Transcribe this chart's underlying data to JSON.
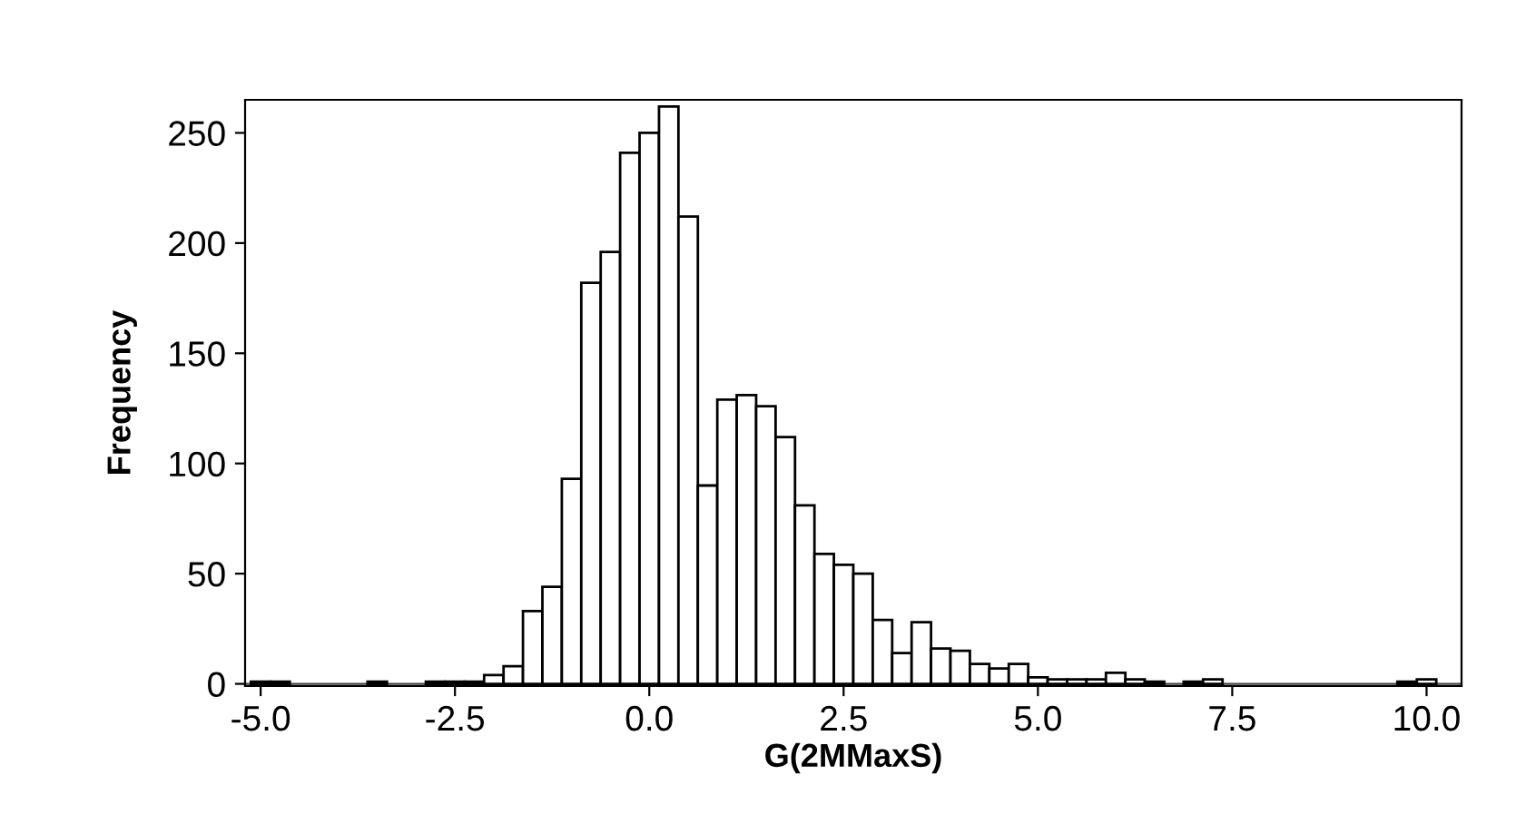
{
  "chart_data": {
    "type": "histogram",
    "xlabel": "G(2MMaxS)",
    "ylabel": "Frequency",
    "bins": [
      -5.125,
      -4.875,
      -4.625,
      -4.375,
      -4.125,
      -3.875,
      -3.625,
      -3.375,
      -3.125,
      -2.875,
      -2.625,
      -2.375,
      -2.125,
      -1.875,
      -1.625,
      -1.375,
      -1.125,
      -0.875,
      -0.625,
      -0.375,
      -0.125,
      0.125,
      0.375,
      0.625,
      0.875,
      1.125,
      1.375,
      1.625,
      1.875,
      2.125,
      2.375,
      2.625,
      2.875,
      3.125,
      3.375,
      3.625,
      3.875,
      4.125,
      4.375,
      4.625,
      4.875,
      5.125,
      5.375,
      5.625,
      5.875,
      6.125,
      6.375,
      6.625,
      6.875,
      7.125,
      7.375,
      7.625,
      7.875,
      8.125,
      8.375,
      8.625,
      8.875,
      9.125,
      9.375,
      9.625,
      9.875,
      10.125
    ],
    "values": [
      1,
      1,
      0,
      0,
      0,
      0,
      1,
      0,
      0,
      1,
      1,
      1,
      4,
      8,
      33,
      44,
      93,
      182,
      196,
      241,
      250,
      262,
      212,
      90,
      129,
      131,
      126,
      112,
      81,
      59,
      54,
      50,
      29,
      14,
      28,
      16,
      15,
      9,
      7,
      9,
      3,
      2,
      2,
      2,
      5,
      2,
      1,
      0,
      1,
      2,
      0,
      0,
      0,
      0,
      0,
      0,
      0,
      0,
      0,
      1,
      2
    ],
    "color": "#ffffff",
    "xlim": [
      -5.2,
      10.45
    ],
    "xticks": [
      {
        "value": -5,
        "label": "-5.0"
      },
      {
        "value": -2.5,
        "label": "-2.5"
      },
      {
        "value": 0,
        "label": "0.0"
      },
      {
        "value": 2.5,
        "label": "2.5"
      },
      {
        "value": 5,
        "label": "5.0"
      },
      {
        "value": 7.5,
        "label": "7.5"
      },
      {
        "value": 10,
        "label": "10.0"
      }
    ],
    "ylim": [
      -1,
      265
    ],
    "yticks": [
      0,
      50,
      100,
      150,
      200,
      250
    ],
    "grid": false
  }
}
